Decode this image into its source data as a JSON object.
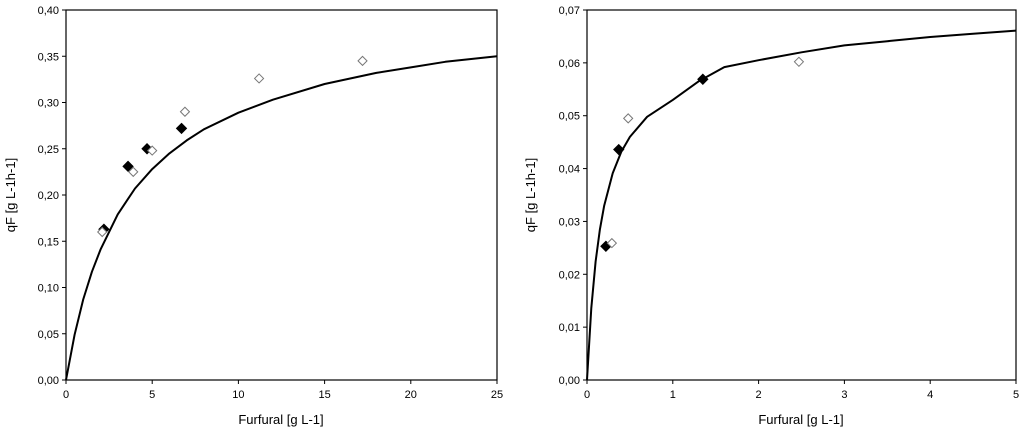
{
  "chart_data": [
    {
      "type": "scatter",
      "title": "",
      "xlabel": "Furfural [g L-1]",
      "ylabel": "qF [g L-1h-1]",
      "xlim": [
        0,
        25
      ],
      "ylim": [
        0,
        0.4
      ],
      "x_ticks": [
        0,
        5,
        10,
        15,
        20,
        25
      ],
      "y_ticks": [
        0.0,
        0.05,
        0.1,
        0.15,
        0.2,
        0.25,
        0.3,
        0.35,
        0.4
      ],
      "x_tick_labels": [
        "0",
        "5",
        "10",
        "15",
        "20",
        "25"
      ],
      "y_tick_labels": [
        "0,00",
        "0,05",
        "0,10",
        "0,15",
        "0,20",
        "0,25",
        "0,30",
        "0,35",
        "0,40"
      ],
      "grid": false,
      "legend": "none",
      "series": [
        {
          "marker": "filled-diamond",
          "color": "#000000",
          "x": [
            2.2,
            3.6,
            4.7,
            6.7
          ],
          "y": [
            0.163,
            0.231,
            0.25,
            0.272
          ]
        },
        {
          "marker": "open-diamond",
          "color": "#ffffff",
          "x": [
            2.1,
            3.9,
            5.0,
            6.9,
            11.2,
            17.2
          ],
          "y": [
            0.16,
            0.225,
            0.248,
            0.29,
            0.326,
            0.345
          ]
        },
        {
          "type": "line",
          "color": "#000000",
          "x": [
            0,
            0.5,
            1,
            1.5,
            2,
            3,
            4,
            5,
            6,
            7,
            8,
            10,
            12,
            15,
            18,
            20,
            22,
            25
          ],
          "y": [
            0,
            0.049,
            0.087,
            0.117,
            0.141,
            0.179,
            0.207,
            0.228,
            0.245,
            0.259,
            0.271,
            0.289,
            0.303,
            0.32,
            0.332,
            0.338,
            0.344,
            0.35
          ]
        }
      ]
    },
    {
      "type": "scatter",
      "title": "",
      "xlabel": "Furfural [g L-1]",
      "ylabel": "qF [g L-1h-1]",
      "xlim": [
        0,
        5
      ],
      "ylim": [
        0,
        0.07
      ],
      "x_ticks": [
        0,
        1,
        2,
        3,
        4,
        5
      ],
      "y_ticks": [
        0.0,
        0.01,
        0.02,
        0.03,
        0.04,
        0.05,
        0.06,
        0.07
      ],
      "x_tick_labels": [
        "0",
        "1",
        "2",
        "3",
        "4",
        "5"
      ],
      "y_tick_labels": [
        "0,00",
        "0,01",
        "0,02",
        "0,03",
        "0,04",
        "0,05",
        "0,06",
        "0,07"
      ],
      "grid": false,
      "legend": "none",
      "series": [
        {
          "marker": "filled-diamond",
          "color": "#000000",
          "x": [
            0.22,
            0.37,
            1.35
          ],
          "y": [
            0.0253,
            0.0436,
            0.0569
          ]
        },
        {
          "marker": "open-diamond",
          "color": "#ffffff",
          "x": [
            0.29,
            0.48,
            2.47
          ],
          "y": [
            0.0259,
            0.0495,
            0.0602
          ]
        },
        {
          "type": "line",
          "color": "#000000",
          "x": [
            0,
            0.05,
            0.1,
            0.15,
            0.2,
            0.3,
            0.4,
            0.5,
            0.7,
            1.0,
            1.3,
            1.6,
            2.0,
            2.5,
            3.0,
            3.5,
            4.0,
            4.5,
            5.0
          ],
          "y": [
            0,
            0.0136,
            0.0224,
            0.0285,
            0.033,
            0.0391,
            0.0432,
            0.046,
            0.0498,
            0.053,
            0.0565,
            0.0592,
            0.0605,
            0.062,
            0.0633,
            0.0641,
            0.0649,
            0.0655,
            0.0661
          ]
        }
      ]
    }
  ]
}
